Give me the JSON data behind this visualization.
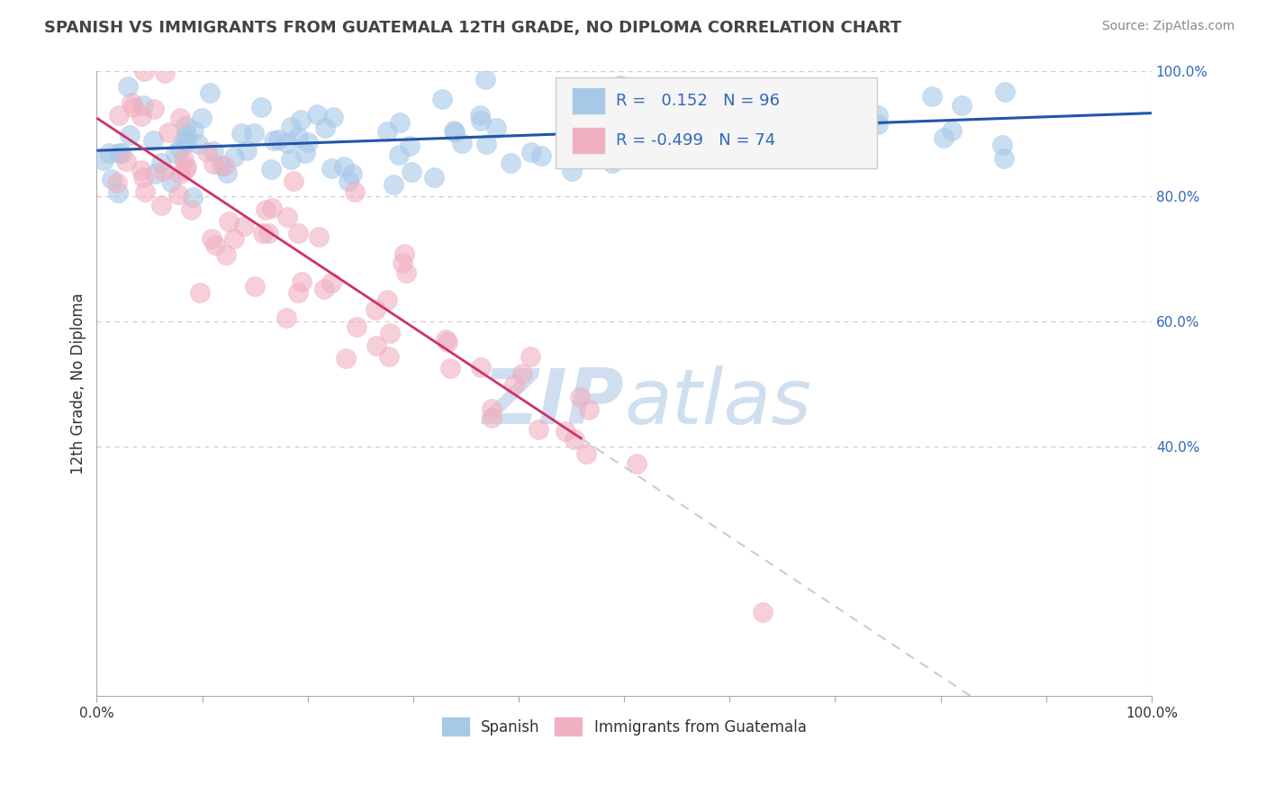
{
  "title": "SPANISH VS IMMIGRANTS FROM GUATEMALA 12TH GRADE, NO DIPLOMA CORRELATION CHART",
  "source": "Source: ZipAtlas.com",
  "ylabel": "12th Grade, No Diploma",
  "xlim": [
    0.0,
    1.0
  ],
  "ylim": [
    0.0,
    1.0
  ],
  "r_spanish": 0.152,
  "n_spanish": 96,
  "r_guatemala": -0.499,
  "n_guatemala": 74,
  "blue_color": "#a8c8e8",
  "blue_edge_color": "#88aacc",
  "pink_color": "#f0b0c0",
  "pink_edge_color": "#cc8899",
  "blue_line_color": "#2255aa",
  "pink_line_color": "#cc3366",
  "dash_color": "#cccccc",
  "watermark_color": "#d0dff0",
  "legend_text_color": "#3366bb",
  "background_color": "#ffffff",
  "grid_color": "#cccccc",
  "title_color": "#444444",
  "right_tick_color": "#3366bb",
  "source_color": "#888888",
  "axis_color": "#aaaaaa",
  "bottom_label_color": "#333333"
}
